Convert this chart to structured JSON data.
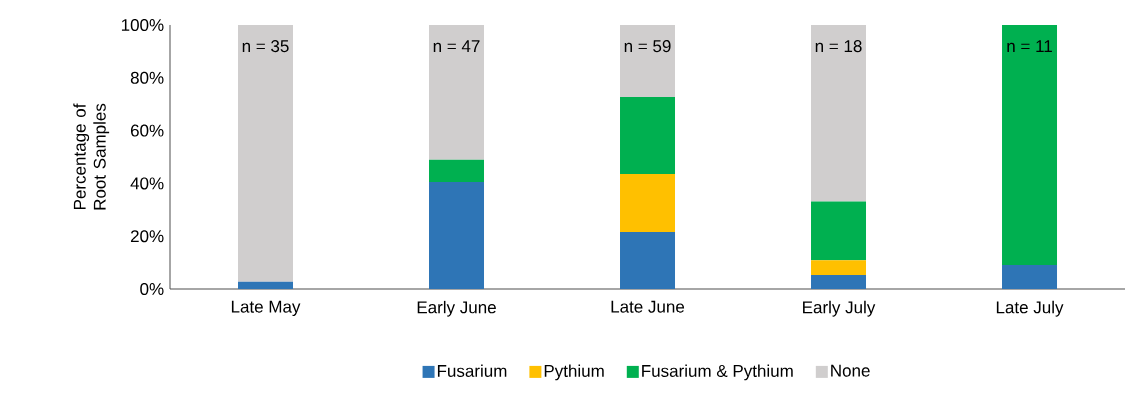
{
  "chart_data": {
    "type": "bar",
    "stacked": true,
    "ylabel": "Percentage of Root Samples",
    "categories": [
      "Late May",
      "Early June",
      "Late June",
      "Early July",
      "Late July"
    ],
    "series": [
      {
        "name": "Fusarium",
        "color": "#2e75b6",
        "values": [
          2.7,
          40.5,
          21.6,
          5.3,
          9.1
        ]
      },
      {
        "name": "Pythium",
        "color": "#ffc000",
        "values": [
          0,
          0,
          22.0,
          5.6,
          0
        ]
      },
      {
        "name": "Fusarium & Pythium",
        "color": "#00b050",
        "values": [
          0,
          8.5,
          29.1,
          22.2,
          90.9
        ]
      },
      {
        "name": "None",
        "color": "#d0cece",
        "values": [
          97.3,
          51.0,
          27.3,
          66.9,
          0
        ]
      }
    ],
    "ylim": [
      0,
      100
    ],
    "yticks": [
      {
        "value": 0,
        "label": "0%"
      },
      {
        "value": 20,
        "label": "20%"
      },
      {
        "value": 40,
        "label": "40%"
      },
      {
        "value": 60,
        "label": "60%"
      },
      {
        "value": 80,
        "label": "80%"
      },
      {
        "value": 100,
        "label": "100%"
      }
    ],
    "annotations": [
      "n = 35",
      "n = 47",
      "n = 59",
      "n = 18",
      "n = 11"
    ],
    "legend": "bottom",
    "grid": false
  }
}
